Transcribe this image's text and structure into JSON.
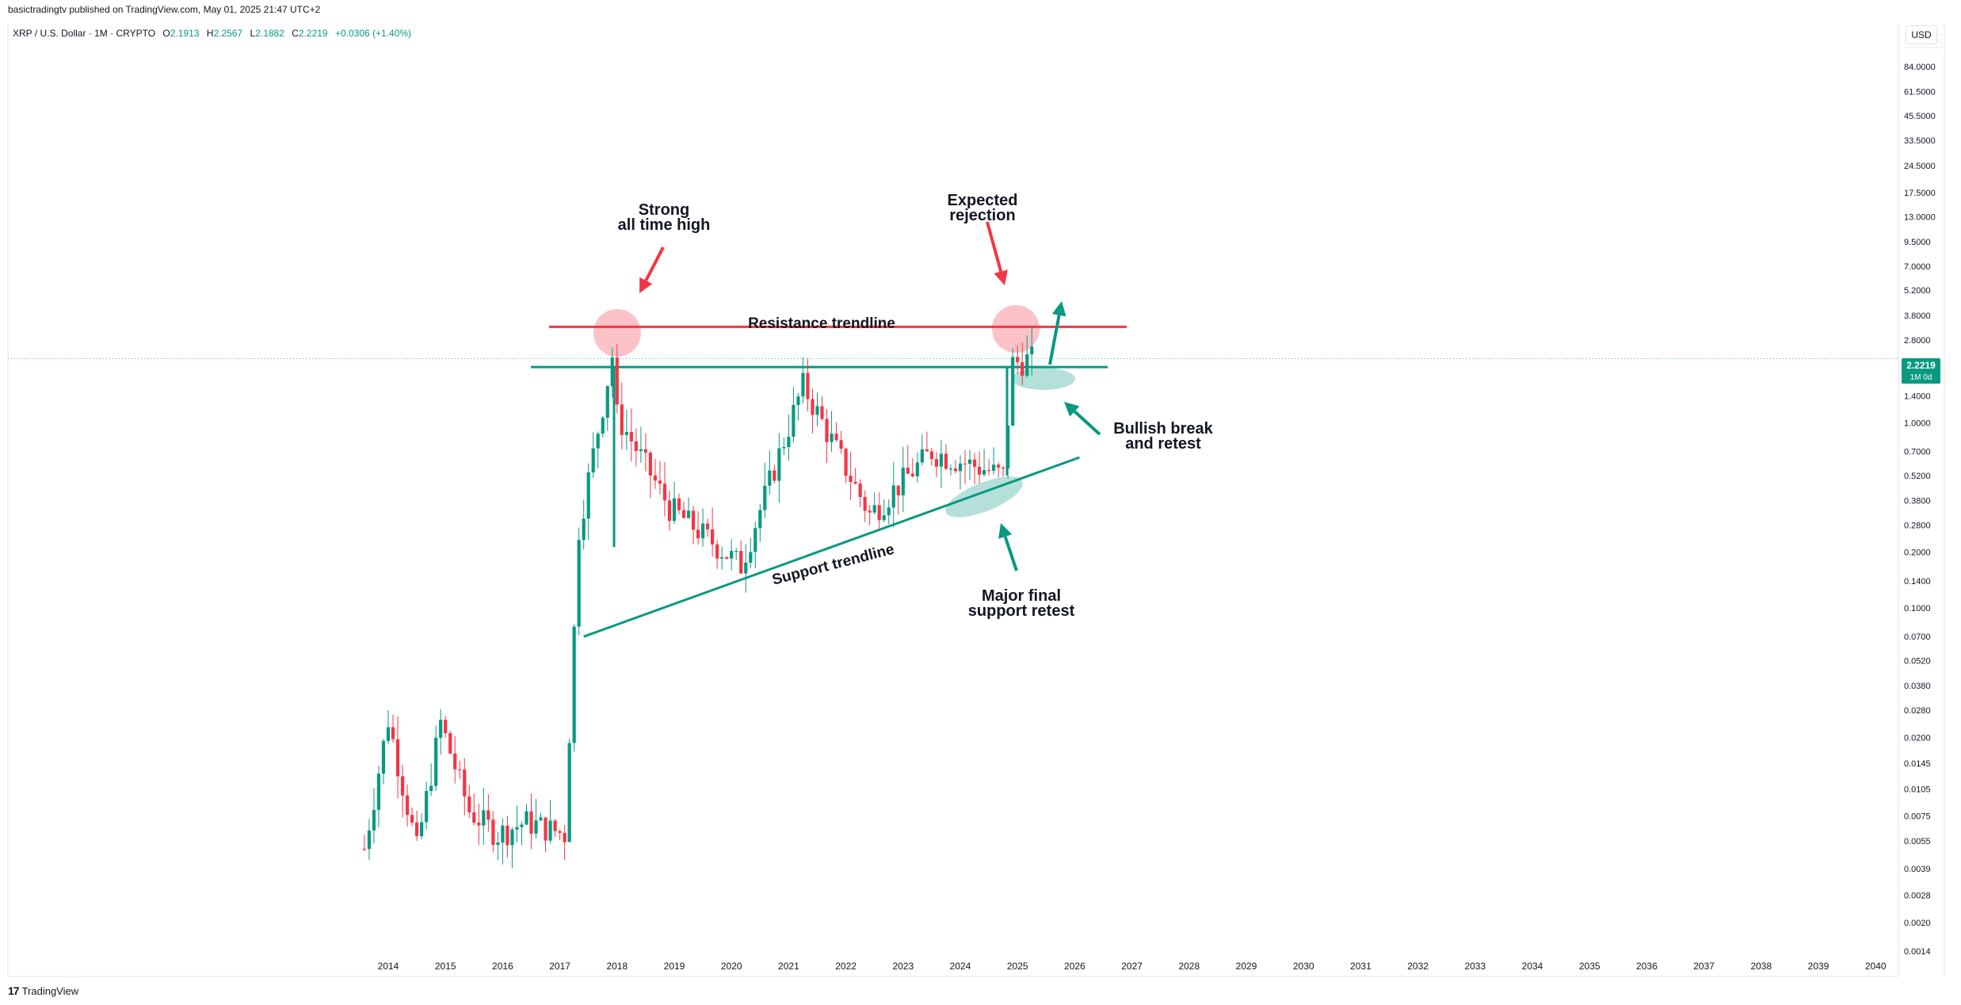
{
  "header": {
    "published": "basictradingtv published on TradingView.com, May 01, 2025 21:47 UTC+2",
    "symbol": "XRP / U.S. Dollar · 1M · CRYPTO",
    "o_label": "O",
    "o_value": "2.1913",
    "h_label": "H",
    "h_value": "2.2567",
    "l_label": "L",
    "l_value": "2.1882",
    "c_label": "C",
    "c_value": "2.2219",
    "change": "+0.0306 (+1.40%)"
  },
  "currency_button": "USD",
  "price_tag": {
    "price": "2.2219",
    "interval": "1M 0d"
  },
  "brand": {
    "logo": "17",
    "name": "TradingView"
  },
  "colors": {
    "up": "#089981",
    "down": "#f23645",
    "resistance": "#f23645",
    "trend": "#089981",
    "grid_text": "#131722"
  },
  "annotations": {
    "strong_ath": "Strong\nall time high",
    "expected_rejection": "Expected\nrejection",
    "resistance_label": "Resistance trendline",
    "support_label": "Support trendline",
    "bullish_break": "Bullish break\nand retest",
    "major_support": "Major final\nsupport retest"
  },
  "chart_data": {
    "type": "candlestick",
    "symbol": "XRPUSD",
    "interval": "1M",
    "y_scale": "log",
    "ylim": [
      0.0014,
      140
    ],
    "xlim": [
      "2013-06",
      "2040-12"
    ],
    "y_ticks": [
      "84.0000",
      "61.5000",
      "45.5000",
      "33.5000",
      "24.5000",
      "17.5000",
      "13.0000",
      "9.5000",
      "7.0000",
      "5.2000",
      "3.8000",
      "2.8000",
      "1.4000",
      "1.0000",
      "0.7000",
      "0.5200",
      "0.3800",
      "0.2800",
      "0.2000",
      "0.1400",
      "0.1000",
      "0.0700",
      "0.0520",
      "0.0380",
      "0.0280",
      "0.0200",
      "0.0145",
      "0.0105",
      "0.0075",
      "0.0055",
      "0.0039",
      "0.0028",
      "0.0020",
      "0.0014"
    ],
    "x_ticks": [
      "2014",
      "2015",
      "2016",
      "2017",
      "2018",
      "2019",
      "2020",
      "2021",
      "2022",
      "2023",
      "2024",
      "2025",
      "2026",
      "2027",
      "2028",
      "2029",
      "2030",
      "2031",
      "2032",
      "2033",
      "2034",
      "2035",
      "2036",
      "2037",
      "2038",
      "2039",
      "2040"
    ],
    "last_price": 2.2219,
    "key_points": [
      {
        "date": "2013-08",
        "close": 0.005
      },
      {
        "date": "2014-01",
        "close": 0.025
      },
      {
        "date": "2014-07",
        "close": 0.005
      },
      {
        "date": "2014-12",
        "close": 0.024
      },
      {
        "date": "2015-06",
        "close": 0.008
      },
      {
        "date": "2015-12",
        "close": 0.006
      },
      {
        "date": "2016-06",
        "close": 0.007
      },
      {
        "date": "2017-02",
        "close": 0.006
      },
      {
        "date": "2017-05",
        "close": 0.27
      },
      {
        "date": "2017-12",
        "close": 2.3
      },
      {
        "date": "2018-01",
        "close": 1.1
      },
      {
        "date": "2018-12",
        "close": 0.35
      },
      {
        "date": "2020-03",
        "close": 0.17
      },
      {
        "date": "2021-04",
        "close": 1.6
      },
      {
        "date": "2022-06",
        "close": 0.32
      },
      {
        "date": "2023-07",
        "close": 0.7
      },
      {
        "date": "2024-10",
        "close": 0.52
      },
      {
        "date": "2024-12",
        "close": 2.1
      },
      {
        "date": "2025-04",
        "close": 2.22
      }
    ],
    "resistance_trendline": 3.3,
    "breakout_level": 2.0,
    "support_trendline": [
      {
        "date": "2017-06",
        "value": 0.07
      },
      {
        "date": "2026-02",
        "value": 0.65
      }
    ]
  }
}
